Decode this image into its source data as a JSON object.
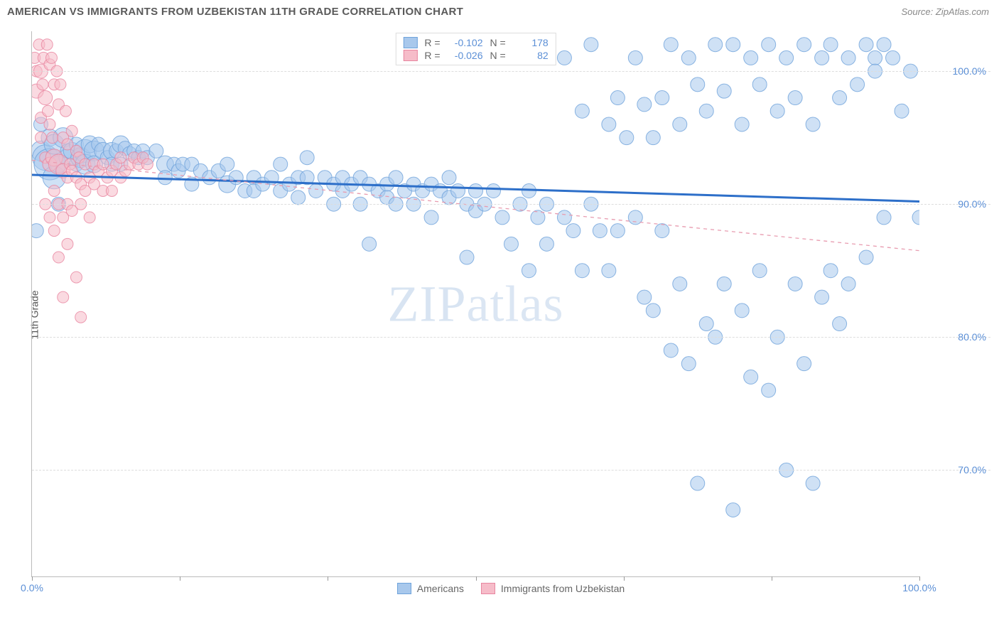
{
  "header": {
    "title": "AMERICAN VS IMMIGRANTS FROM UZBEKISTAN 11TH GRADE CORRELATION CHART",
    "source": "Source: ZipAtlas.com"
  },
  "watermark": "ZIPatlas",
  "y_axis": {
    "label": "11th Grade"
  },
  "x_axis": {
    "min": 0,
    "max": 100,
    "ticks": [
      0,
      16.67,
      33.33,
      50,
      66.67,
      83.33,
      100
    ],
    "labels": {
      "0": "0.0%",
      "100": "100.0%"
    }
  },
  "y_range": {
    "min": 62,
    "max": 103
  },
  "y_ticks": [
    {
      "v": 70,
      "label": "70.0%"
    },
    {
      "v": 80,
      "label": "80.0%"
    },
    {
      "v": 90,
      "label": "90.0%"
    },
    {
      "v": 100,
      "label": "100.0%"
    }
  ],
  "series": [
    {
      "name": "Americans",
      "label": "Americans",
      "color_fill": "#a8c8ec",
      "color_stroke": "#6fa3db",
      "opacity": 0.55,
      "R": "-0.102",
      "N": "178",
      "trend": {
        "y_at_x0": 92.2,
        "y_at_x100": 90.2,
        "stroke": "#2d6fc9",
        "width": 3,
        "dash": ""
      },
      "points": [
        [
          0.5,
          88,
          10
        ],
        [
          1,
          94,
          14
        ],
        [
          1,
          96,
          10
        ],
        [
          1.5,
          93.5,
          18
        ],
        [
          2,
          93,
          22
        ],
        [
          2,
          95,
          12
        ],
        [
          2.5,
          92,
          16
        ],
        [
          2.5,
          94.5,
          14
        ],
        [
          3,
          93,
          12
        ],
        [
          3,
          90,
          10
        ],
        [
          3.5,
          95,
          14
        ],
        [
          4,
          93.5,
          12
        ],
        [
          4,
          94,
          10
        ],
        [
          4.5,
          94,
          12
        ],
        [
          5,
          93,
          10
        ],
        [
          5,
          94.5,
          10
        ],
        [
          5.5,
          93.5,
          14
        ],
        [
          6,
          94,
          16
        ],
        [
          6,
          93,
          14
        ],
        [
          6.5,
          94.5,
          12
        ],
        [
          7,
          94,
          14
        ],
        [
          7,
          93,
          12
        ],
        [
          7.5,
          94.5,
          10
        ],
        [
          8,
          94,
          12
        ],
        [
          8.5,
          93.5,
          10
        ],
        [
          9,
          94,
          12
        ],
        [
          9,
          93,
          10
        ],
        [
          9.5,
          94,
          10
        ],
        [
          10,
          94.5,
          12
        ],
        [
          10,
          93,
          10
        ],
        [
          10.5,
          94.2,
          10
        ],
        [
          11,
          93.8,
          10
        ],
        [
          11.5,
          94,
          10
        ],
        [
          12,
          93.5,
          10
        ],
        [
          12.5,
          94,
          10
        ],
        [
          13,
          93.5,
          10
        ],
        [
          14,
          94,
          10
        ],
        [
          15,
          93,
          12
        ],
        [
          15,
          92,
          10
        ],
        [
          16,
          93,
          10
        ],
        [
          16.5,
          92.5,
          10
        ],
        [
          17,
          93,
          10
        ],
        [
          18,
          93,
          10
        ],
        [
          18,
          91.5,
          10
        ],
        [
          19,
          92.5,
          10
        ],
        [
          20,
          92,
          10
        ],
        [
          21,
          92.5,
          10
        ],
        [
          22,
          91.5,
          12
        ],
        [
          22,
          93,
          10
        ],
        [
          23,
          92,
          10
        ],
        [
          24,
          91,
          10
        ],
        [
          25,
          92,
          10
        ],
        [
          25,
          91,
          10
        ],
        [
          26,
          91.5,
          10
        ],
        [
          27,
          92,
          10
        ],
        [
          28,
          91,
          10
        ],
        [
          28,
          93,
          10
        ],
        [
          29,
          91.5,
          10
        ],
        [
          30,
          92,
          10
        ],
        [
          30,
          90.5,
          10
        ],
        [
          31,
          92,
          10
        ],
        [
          31,
          93.5,
          10
        ],
        [
          32,
          91,
          10
        ],
        [
          33,
          92,
          10
        ],
        [
          34,
          91.5,
          10
        ],
        [
          34,
          90,
          10
        ],
        [
          35,
          92,
          10
        ],
        [
          35,
          91,
          10
        ],
        [
          36,
          91.5,
          10
        ],
        [
          37,
          92,
          10
        ],
        [
          37,
          90,
          10
        ],
        [
          38,
          91.5,
          10
        ],
        [
          38,
          87,
          10
        ],
        [
          39,
          91,
          10
        ],
        [
          40,
          91.5,
          10
        ],
        [
          40,
          90.5,
          10
        ],
        [
          41,
          92,
          10
        ],
        [
          41,
          90,
          10
        ],
        [
          42,
          91,
          10
        ],
        [
          43,
          91.5,
          10
        ],
        [
          43,
          90,
          10
        ],
        [
          44,
          91,
          10
        ],
        [
          45,
          91.5,
          10
        ],
        [
          45,
          89,
          10
        ],
        [
          46,
          91,
          10
        ],
        [
          47,
          90.5,
          10
        ],
        [
          47,
          92,
          10
        ],
        [
          48,
          91,
          10
        ],
        [
          49,
          86,
          10
        ],
        [
          49,
          90,
          10
        ],
        [
          50,
          91,
          10
        ],
        [
          50,
          89.5,
          10
        ],
        [
          51,
          90,
          10
        ],
        [
          52,
          91,
          10
        ],
        [
          53,
          89,
          10
        ],
        [
          54,
          87,
          10
        ],
        [
          55,
          90,
          10
        ],
        [
          56,
          85,
          10
        ],
        [
          56,
          91,
          10
        ],
        [
          57,
          89,
          10
        ],
        [
          58,
          90,
          10
        ],
        [
          58,
          87,
          10
        ],
        [
          60,
          89,
          10
        ],
        [
          60,
          101,
          10
        ],
        [
          61,
          88,
          10
        ],
        [
          62,
          85,
          10
        ],
        [
          62,
          97,
          10
        ],
        [
          63,
          90,
          10
        ],
        [
          63,
          102,
          10
        ],
        [
          64,
          88,
          10
        ],
        [
          65,
          96,
          10
        ],
        [
          65,
          85,
          10
        ],
        [
          66,
          98,
          10
        ],
        [
          66,
          88,
          10
        ],
        [
          67,
          95,
          10
        ],
        [
          68,
          89,
          10
        ],
        [
          68,
          101,
          10
        ],
        [
          69,
          97.5,
          10
        ],
        [
          69,
          83,
          10
        ],
        [
          70,
          95,
          10
        ],
        [
          70,
          82,
          10
        ],
        [
          71,
          98,
          10
        ],
        [
          71,
          88,
          10
        ],
        [
          72,
          102,
          10
        ],
        [
          72,
          79,
          10
        ],
        [
          73,
          96,
          10
        ],
        [
          73,
          84,
          10
        ],
        [
          74,
          101,
          10
        ],
        [
          74,
          78,
          10
        ],
        [
          75,
          99,
          10
        ],
        [
          75,
          69,
          10
        ],
        [
          76,
          97,
          10
        ],
        [
          76,
          81,
          10
        ],
        [
          77,
          102,
          10
        ],
        [
          77,
          80,
          10
        ],
        [
          78,
          98.5,
          10
        ],
        [
          78,
          84,
          10
        ],
        [
          79,
          102,
          10
        ],
        [
          79,
          67,
          10
        ],
        [
          80,
          96,
          10
        ],
        [
          80,
          82,
          10
        ],
        [
          81,
          101,
          10
        ],
        [
          81,
          77,
          10
        ],
        [
          82,
          99,
          10
        ],
        [
          82,
          85,
          10
        ],
        [
          83,
          102,
          10
        ],
        [
          83,
          76,
          10
        ],
        [
          84,
          97,
          10
        ],
        [
          84,
          80,
          10
        ],
        [
          85,
          101,
          10
        ],
        [
          85,
          70,
          10
        ],
        [
          86,
          98,
          10
        ],
        [
          86,
          84,
          10
        ],
        [
          87,
          102,
          10
        ],
        [
          87,
          78,
          10
        ],
        [
          88,
          96,
          10
        ],
        [
          88,
          69,
          10
        ],
        [
          89,
          101,
          10
        ],
        [
          89,
          83,
          10
        ],
        [
          90,
          102,
          10
        ],
        [
          90,
          85,
          10
        ],
        [
          91,
          98,
          10
        ],
        [
          91,
          81,
          10
        ],
        [
          92,
          101,
          10
        ],
        [
          92,
          84,
          10
        ],
        [
          93,
          99,
          10
        ],
        [
          94,
          102,
          10
        ],
        [
          94,
          86,
          10
        ],
        [
          95,
          101,
          10
        ],
        [
          95,
          100,
          10
        ],
        [
          96,
          102,
          10
        ],
        [
          96,
          89,
          10
        ],
        [
          97,
          101,
          10
        ],
        [
          98,
          97,
          10
        ],
        [
          99,
          100,
          10
        ],
        [
          100,
          89,
          10
        ]
      ]
    },
    {
      "name": "Immigrants from Uzbekistan",
      "label": "Immigrants from Uzbekistan",
      "color_fill": "#f6bcc9",
      "color_stroke": "#e886a0",
      "opacity": 0.55,
      "R": "-0.026",
      "N": "82",
      "trend": {
        "y_at_x0": 93.3,
        "y_at_x100": 86.5,
        "stroke": "#e89cb0",
        "width": 1.3,
        "dash": "5,5"
      },
      "points": [
        [
          0.3,
          101,
          8
        ],
        [
          0.5,
          100,
          8
        ],
        [
          0.5,
          98.5,
          10
        ],
        [
          0.8,
          102,
          8
        ],
        [
          1,
          100,
          10
        ],
        [
          1,
          96.5,
          8
        ],
        [
          1,
          95,
          8
        ],
        [
          1.2,
          99,
          8
        ],
        [
          1.3,
          101,
          8
        ],
        [
          1.5,
          98,
          10
        ],
        [
          1.5,
          93.5,
          8
        ],
        [
          1.5,
          90,
          8
        ],
        [
          1.7,
          102,
          8
        ],
        [
          1.8,
          97,
          8
        ],
        [
          2,
          100.5,
          8
        ],
        [
          2,
          96,
          8
        ],
        [
          2,
          93,
          10
        ],
        [
          2,
          89,
          8
        ],
        [
          2.2,
          101,
          8
        ],
        [
          2.3,
          95,
          8
        ],
        [
          2.5,
          99,
          8
        ],
        [
          2.5,
          93.5,
          12
        ],
        [
          2.5,
          91,
          8
        ],
        [
          2.5,
          88,
          8
        ],
        [
          2.8,
          100,
          8
        ],
        [
          3,
          97.5,
          8
        ],
        [
          3,
          93,
          14
        ],
        [
          3,
          90,
          8
        ],
        [
          3,
          86,
          8
        ],
        [
          3.2,
          99,
          8
        ],
        [
          3.5,
          95,
          8
        ],
        [
          3.5,
          92.5,
          10
        ],
        [
          3.5,
          89,
          8
        ],
        [
          3.5,
          83,
          8
        ],
        [
          3.8,
          97,
          8
        ],
        [
          4,
          94.5,
          8
        ],
        [
          4,
          92,
          8
        ],
        [
          4,
          90,
          8
        ],
        [
          4,
          87,
          8
        ],
        [
          4.3,
          93,
          8
        ],
        [
          4.5,
          95.5,
          8
        ],
        [
          4.5,
          92.5,
          8
        ],
        [
          4.5,
          89.5,
          8
        ],
        [
          5,
          94,
          8
        ],
        [
          5,
          92,
          8
        ],
        [
          5,
          84.5,
          8
        ],
        [
          5.3,
          93.5,
          8
        ],
        [
          5.5,
          91.5,
          8
        ],
        [
          5.5,
          90,
          8
        ],
        [
          5.5,
          81.5,
          8
        ],
        [
          6,
          93,
          8
        ],
        [
          6,
          91,
          8
        ],
        [
          6.5,
          92,
          8
        ],
        [
          6.5,
          89,
          8
        ],
        [
          7,
          93,
          8
        ],
        [
          7,
          91.5,
          8
        ],
        [
          7.5,
          92.5,
          8
        ],
        [
          8,
          93,
          8
        ],
        [
          8,
          91,
          8
        ],
        [
          8.5,
          92,
          8
        ],
        [
          9,
          92.5,
          8
        ],
        [
          9,
          91,
          8
        ],
        [
          9.5,
          93,
          8
        ],
        [
          10,
          92,
          8
        ],
        [
          10,
          93.5,
          8
        ],
        [
          10.5,
          92.5,
          8
        ],
        [
          11,
          93,
          8
        ],
        [
          11.5,
          93.5,
          8
        ],
        [
          12,
          93,
          8
        ],
        [
          12.5,
          93.5,
          8
        ],
        [
          13,
          93,
          8
        ]
      ]
    }
  ],
  "legend_bottom": [
    {
      "label": "Americans",
      "fill": "#a8c8ec",
      "stroke": "#6fa3db"
    },
    {
      "label": "Immigrants from Uzbekistan",
      "fill": "#f6bcc9",
      "stroke": "#e886a0"
    }
  ]
}
